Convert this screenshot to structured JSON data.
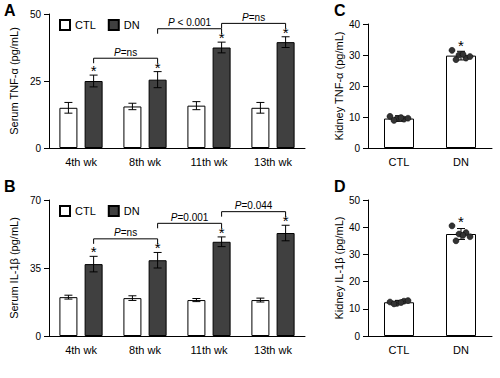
{
  "chart_data": [
    {
      "type": "bar",
      "title": "A",
      "y_label": "Serum TNF-α (pg/mL)",
      "categories": [
        "4th wk",
        "8th wk",
        "11th wk",
        "13th wk"
      ],
      "series": [
        {
          "name": "CTL",
          "color": "#ffffff",
          "values": [
            15,
            15.5,
            15.8,
            15
          ],
          "errors": [
            2,
            1.2,
            1.5,
            2
          ]
        },
        {
          "name": "DN",
          "color": "#404040",
          "values": [
            25,
            25.5,
            37.5,
            39.5
          ],
          "errors": [
            2.2,
            3,
            2,
            2
          ]
        }
      ],
      "ylim": [
        0,
        50
      ],
      "yticks": [
        0,
        25,
        50
      ],
      "legend": "top-left",
      "annotations": [
        {
          "text": "*",
          "series": "DN",
          "category": "4th wk"
        },
        {
          "text": "*",
          "series": "DN",
          "category": "8th wk"
        },
        {
          "text": "*",
          "series": "DN",
          "category": "11th wk"
        },
        {
          "text": "*",
          "series": "DN",
          "category": "13th wk"
        }
      ],
      "comparisons": [
        {
          "from": "4th wk",
          "to": "8th wk",
          "series": "DN",
          "text": "P=ns"
        },
        {
          "from": "8th wk",
          "to": "11th wk",
          "series": "DN",
          "text": "P < 0.001"
        },
        {
          "from": "11th wk",
          "to": "13th wk",
          "series": "DN",
          "text": "P=ns"
        }
      ]
    },
    {
      "type": "bar",
      "title": "B",
      "y_label": "Serum IL-1β (pg/mL)",
      "categories": [
        "4th wk",
        "8th wk",
        "11th wk",
        "13th wk"
      ],
      "series": [
        {
          "name": "CTL",
          "color": "#ffffff",
          "values": [
            20,
            19.5,
            18.5,
            18.5
          ],
          "errors": [
            1,
            1.2,
            0.8,
            1
          ]
        },
        {
          "name": "DN",
          "color": "#404040",
          "values": [
            37,
            39,
            48.5,
            53
          ],
          "errors": [
            4,
            4,
            2.5,
            4
          ]
        }
      ],
      "ylim": [
        0,
        70
      ],
      "yticks": [
        0,
        35,
        70
      ],
      "legend": "top-left",
      "annotations": [
        {
          "text": "*",
          "series": "DN",
          "category": "4th wk"
        },
        {
          "text": "*",
          "series": "DN",
          "category": "8th wk"
        },
        {
          "text": "*",
          "series": "DN",
          "category": "11th wk"
        },
        {
          "text": "*",
          "series": "DN",
          "category": "13th wk"
        }
      ],
      "comparisons": [
        {
          "from": "4th wk",
          "to": "8th wk",
          "series": "DN",
          "text": "P=ns"
        },
        {
          "from": "8th wk",
          "to": "11th wk",
          "series": "DN",
          "text": "P=0.001"
        },
        {
          "from": "11th wk",
          "to": "13th wk",
          "series": "DN",
          "text": "P=0.044"
        }
      ]
    },
    {
      "type": "bar",
      "title": "C",
      "y_label": "Kidney TNF-α (pg/mL)",
      "categories": [
        "CTL",
        "DN"
      ],
      "color": "#ffffff",
      "values": [
        9.5,
        29.8
      ],
      "errors": [
        0.9,
        1.4
      ],
      "points": [
        [
          10.2,
          9.5,
          9.3,
          8.9,
          9.8,
          9.6
        ],
        [
          31.5,
          30.0,
          29.0,
          28.5,
          30.2,
          29.5
        ]
      ],
      "ylim": [
        0,
        40
      ],
      "yticks": [
        0,
        10,
        20,
        30,
        40
      ],
      "annotations": [
        {
          "text": "*",
          "category": "DN"
        }
      ]
    },
    {
      "type": "bar",
      "title": "D",
      "y_label": "Kidney IL-1β (pg/mL)",
      "categories": [
        "CTL",
        "DN"
      ],
      "color": "#ffffff",
      "values": [
        12.4,
        37.5
      ],
      "errors": [
        0.7,
        2
      ],
      "points": [
        [
          12.5,
          12.0,
          12.8,
          11.8,
          12.3,
          13.0
        ],
        [
          40.5,
          37.5,
          38.0,
          35.0,
          37.0,
          36.5
        ]
      ],
      "ylim": [
        0,
        50
      ],
      "yticks": [
        0,
        10,
        20,
        30,
        40,
        50
      ],
      "annotations": [
        {
          "text": "*",
          "category": "DN"
        }
      ]
    }
  ]
}
